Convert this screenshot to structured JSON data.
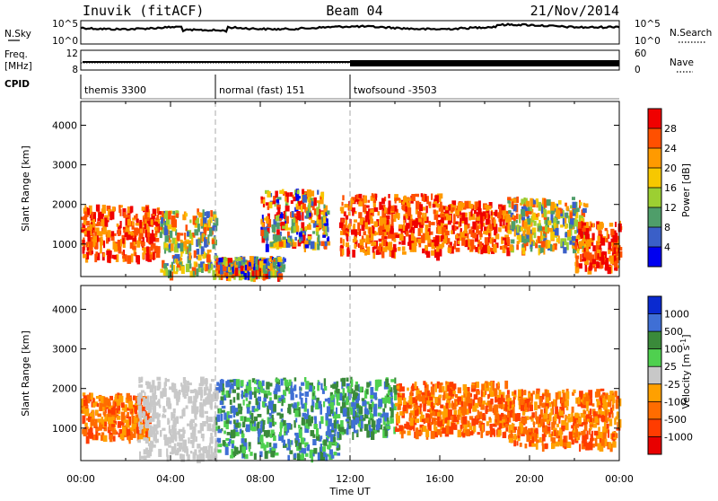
{
  "header": {
    "station": "Inuvik (fitACF)",
    "beam": "Beam 04",
    "date": "21/Nov/2014"
  },
  "top_panels": {
    "nsky_label": "N.Sky",
    "nsky_ticks": [
      "10^5",
      "10^0"
    ],
    "nsearch_label": "N.Search",
    "nsearch_ticks": [
      "10^5",
      "10^0"
    ],
    "freq_label_1": "Freq.",
    "freq_label_2": "[MHz]",
    "freq_ticks": [
      "12",
      "8"
    ],
    "nave_label": "Nave",
    "nave_ticks": [
      "60",
      "0"
    ],
    "cpid_label": "CPID"
  },
  "cpid_segments": [
    {
      "label": "themis 3300",
      "start_hour": 0,
      "end_hour": 6
    },
    {
      "label": "normal (fast) 151",
      "start_hour": 6,
      "end_hour": 12
    },
    {
      "label": "twofsound -3503",
      "start_hour": 12,
      "end_hour": 24
    }
  ],
  "power_colorbar": {
    "label": "Power [dB]",
    "ticks": [
      "28",
      "24",
      "20",
      "16",
      "12",
      "8",
      "4"
    ],
    "colors": [
      "#f00000",
      "#ff5000",
      "#ff9a00",
      "#f7c800",
      "#9ccf32",
      "#4f9e6a",
      "#3a5fc8",
      "#0000f0"
    ]
  },
  "velocity_colorbar": {
    "label": "Velocity [m s",
    "label_sup": "-1",
    "label_end": "]",
    "ticks": [
      "1000",
      "500",
      "100",
      "25",
      "-25",
      "-100",
      "-500",
      "-1000"
    ],
    "colors": [
      "#0a2ad0",
      "#3f6fd5",
      "#3a8a3a",
      "#4fd04f",
      "#c8c8c8",
      "#ffa000",
      "#ff6c00",
      "#ff3c00",
      "#e80000"
    ]
  },
  "chart_data": [
    {
      "type": "heatmap",
      "name": "power",
      "ylabel": "Slant Range [km]",
      "x_range_hours": [
        0,
        24
      ],
      "ylim": [
        180,
        4600
      ],
      "yticks": [
        "1000",
        "2000",
        "3000",
        "4000"
      ],
      "ytick_values": [
        1000,
        2000,
        3000,
        4000
      ],
      "scatter_regions": [
        {
          "t0": 0.0,
          "t1": 3.5,
          "r0": 700,
          "r1": 2000,
          "level": "high"
        },
        {
          "t0": 3.5,
          "t1": 6.0,
          "r0": 300,
          "r1": 1900,
          "level": "mid"
        },
        {
          "t0": 6.0,
          "t1": 9.0,
          "r0": 250,
          "r1": 700,
          "level": "mixed"
        },
        {
          "t0": 8.0,
          "t1": 11.0,
          "r0": 1000,
          "r1": 2400,
          "level": "mixed"
        },
        {
          "t0": 11.5,
          "t1": 16.0,
          "r0": 800,
          "r1": 2300,
          "level": "high"
        },
        {
          "t0": 16.0,
          "t1": 19.0,
          "r0": 900,
          "r1": 2100,
          "level": "high"
        },
        {
          "t0": 19.0,
          "t1": 22.5,
          "r0": 900,
          "r1": 2200,
          "level": "mid"
        },
        {
          "t0": 22.0,
          "t1": 24.0,
          "r0": 400,
          "r1": 1600,
          "level": "high"
        }
      ]
    },
    {
      "type": "heatmap",
      "name": "velocity",
      "ylabel": "Slant Range [km]",
      "x_range_hours": [
        0,
        24
      ],
      "ylim": [
        180,
        4600
      ],
      "yticks": [
        "1000",
        "2000",
        "3000",
        "4000"
      ],
      "ytick_values": [
        1000,
        2000,
        3000,
        4000
      ],
      "xticks": [
        "00:00",
        "04:00",
        "08:00",
        "12:00",
        "16:00",
        "20:00",
        "00:00"
      ],
      "xtick_values": [
        0,
        4,
        8,
        12,
        16,
        20,
        24
      ],
      "xlabel": "Time UT",
      "scatter_regions": [
        {
          "t0": 0.0,
          "t1": 3.0,
          "r0": 800,
          "r1": 1900,
          "level": "neg"
        },
        {
          "t0": 2.5,
          "t1": 6.0,
          "r0": 300,
          "r1": 2300,
          "level": "ground"
        },
        {
          "t0": 6.0,
          "t1": 11.5,
          "r0": 300,
          "r1": 2300,
          "level": "pos"
        },
        {
          "t0": 11.5,
          "t1": 14.0,
          "r0": 900,
          "r1": 2300,
          "level": "pos"
        },
        {
          "t0": 14.0,
          "t1": 19.0,
          "r0": 900,
          "r1": 2200,
          "level": "neg"
        },
        {
          "t0": 19.0,
          "t1": 24.0,
          "r0": 600,
          "r1": 2000,
          "level": "neg"
        }
      ]
    }
  ]
}
